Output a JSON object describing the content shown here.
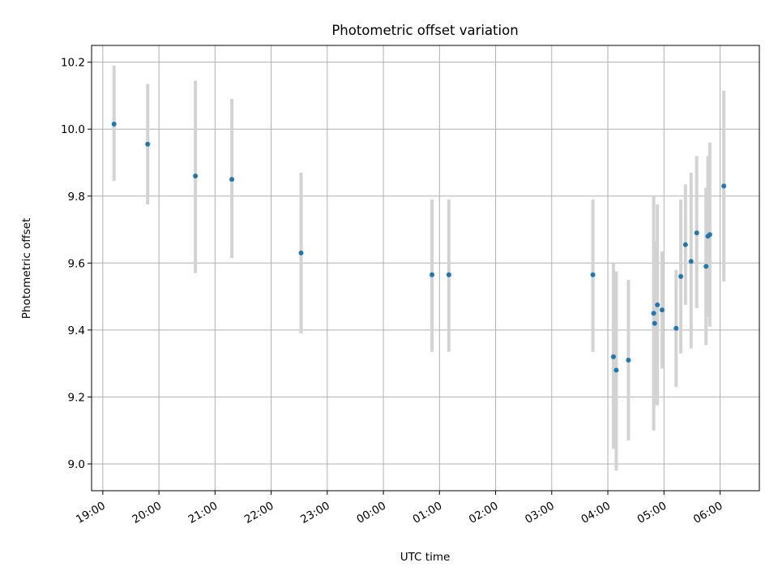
{
  "chart_data": {
    "type": "scatter",
    "title": "Photometric offset variation",
    "xlabel": "UTC time",
    "ylabel": "Photometric offset",
    "x_unit": "UTC time of day (night spanning midnight)",
    "xlim": [
      "18:48",
      "06:42"
    ],
    "ylim": [
      8.92,
      10.25
    ],
    "grid": true,
    "x_ticks": [
      "19:00",
      "20:00",
      "21:00",
      "22:00",
      "23:00",
      "00:00",
      "01:00",
      "02:00",
      "03:00",
      "04:00",
      "05:00",
      "06:00"
    ],
    "y_ticks": [
      "9.0",
      "9.2",
      "9.4",
      "9.6",
      "9.8",
      "10.0",
      "10.2"
    ],
    "point_color": "#1f77b4",
    "errorbar_color": "#d3d3d3",
    "points": [
      {
        "x": "19:12",
        "y": 10.015,
        "ylow": 9.845,
        "yhigh": 10.19
      },
      {
        "x": "19:48",
        "y": 9.955,
        "ylow": 9.775,
        "yhigh": 10.135
      },
      {
        "x": "20:39",
        "y": 9.86,
        "ylow": 9.57,
        "yhigh": 10.145
      },
      {
        "x": "21:18",
        "y": 9.85,
        "ylow": 9.615,
        "yhigh": 10.09
      },
      {
        "x": "22:32",
        "y": 9.63,
        "ylow": 9.39,
        "yhigh": 9.87
      },
      {
        "x": "00:52",
        "y": 9.565,
        "ylow": 9.335,
        "yhigh": 9.79
      },
      {
        "x": "01:10",
        "y": 9.565,
        "ylow": 9.335,
        "yhigh": 9.79
      },
      {
        "x": "03:44",
        "y": 9.565,
        "ylow": 9.335,
        "yhigh": 9.79
      },
      {
        "x": "04:06",
        "y": 9.32,
        "ylow": 9.045,
        "yhigh": 9.6
      },
      {
        "x": "04:09",
        "y": 9.28,
        "ylow": 8.98,
        "yhigh": 9.575
      },
      {
        "x": "04:22",
        "y": 9.31,
        "ylow": 9.07,
        "yhigh": 9.55
      },
      {
        "x": "04:49",
        "y": 9.45,
        "ylow": 9.1,
        "yhigh": 9.8
      },
      {
        "x": "04:50",
        "y": 9.42,
        "ylow": 9.175,
        "yhigh": 9.665
      },
      {
        "x": "04:53",
        "y": 9.475,
        "ylow": 9.175,
        "yhigh": 9.775
      },
      {
        "x": "04:58",
        "y": 9.46,
        "ylow": 9.285,
        "yhigh": 9.635
      },
      {
        "x": "05:13",
        "y": 9.405,
        "ylow": 9.23,
        "yhigh": 9.58
      },
      {
        "x": "05:18",
        "y": 9.56,
        "ylow": 9.33,
        "yhigh": 9.79
      },
      {
        "x": "05:23",
        "y": 9.655,
        "ylow": 9.475,
        "yhigh": 9.835
      },
      {
        "x": "05:29",
        "y": 9.605,
        "ylow": 9.345,
        "yhigh": 9.87
      },
      {
        "x": "05:35",
        "y": 9.69,
        "ylow": 9.465,
        "yhigh": 9.92
      },
      {
        "x": "05:45",
        "y": 9.59,
        "ylow": 9.355,
        "yhigh": 9.825
      },
      {
        "x": "05:47",
        "y": 9.68,
        "ylow": 9.44,
        "yhigh": 9.92
      },
      {
        "x": "05:49",
        "y": 9.685,
        "ylow": 9.41,
        "yhigh": 9.96
      },
      {
        "x": "06:04",
        "y": 9.83,
        "ylow": 9.545,
        "yhigh": 10.115
      }
    ]
  }
}
